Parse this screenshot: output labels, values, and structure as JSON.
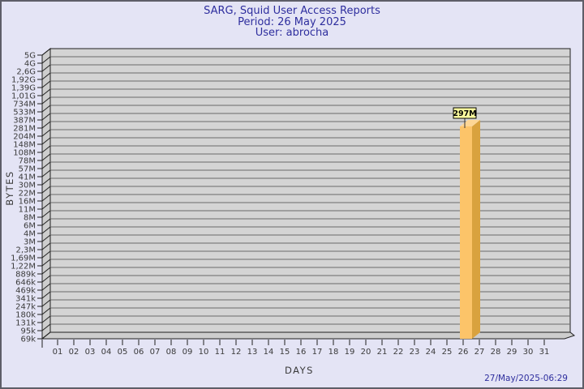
{
  "header": {
    "title": "SARG, Squid User Access Reports",
    "period": "Period: 26 May 2025",
    "user": "User: abrocha"
  },
  "footer": {
    "timestamp": "27/May/2025-06:29"
  },
  "colors": {
    "background": "#e4e4f5",
    "page_border": "#5e5e68",
    "title_text": "#2e2e9e",
    "wall_fill": "#d4d4d4",
    "side_wall_fill": "#cdcdcd",
    "wall_edge": "#1f1f1f",
    "grid_line": "#6a6a6a",
    "axis_text": "#3a3a3a",
    "bar_front": "#fcc469",
    "bar_side": "#d9a23e",
    "bar_top": "#fdd695",
    "value_flag_fill": "#ffff9e",
    "value_flag_border": "#000000",
    "value_flag_text": "#000000"
  },
  "chart_data": {
    "type": "bar",
    "title": "SARG, Squid User Access Reports",
    "subtitle": [
      "Period: 26 May 2025",
      "User: abrocha"
    ],
    "xlabel": "DAYS",
    "ylabel": "BYTES",
    "x_categories": [
      "01",
      "02",
      "03",
      "04",
      "05",
      "06",
      "07",
      "08",
      "09",
      "10",
      "11",
      "12",
      "13",
      "14",
      "15",
      "16",
      "17",
      "18",
      "19",
      "20",
      "21",
      "22",
      "23",
      "24",
      "25",
      "26",
      "27",
      "28",
      "29",
      "30",
      "31"
    ],
    "y_tick_labels_top_to_bottom": [
      "5G",
      "4G",
      "2,6G",
      "1,92G",
      "1,39G",
      "1,01G",
      "734M",
      "533M",
      "387M",
      "281M",
      "204M",
      "148M",
      "108M",
      "78M",
      "57M",
      "41M",
      "30M",
      "22M",
      "16M",
      "11M",
      "8M",
      "6M",
      "4M",
      "3M",
      "2,3M",
      "1,69M",
      "1,22M",
      "889k",
      "646k",
      "469k",
      "341k",
      "247k",
      "180k",
      "131k",
      "95k",
      "69k"
    ],
    "y_scale": "log",
    "y_range_bytes": [
      69000,
      5000000000
    ],
    "grid": true,
    "legend": "none",
    "series": [
      {
        "name": "abrocha",
        "points": [
          {
            "day": "26",
            "value_label": "297M",
            "value_bytes": 297000000
          }
        ]
      }
    ]
  }
}
